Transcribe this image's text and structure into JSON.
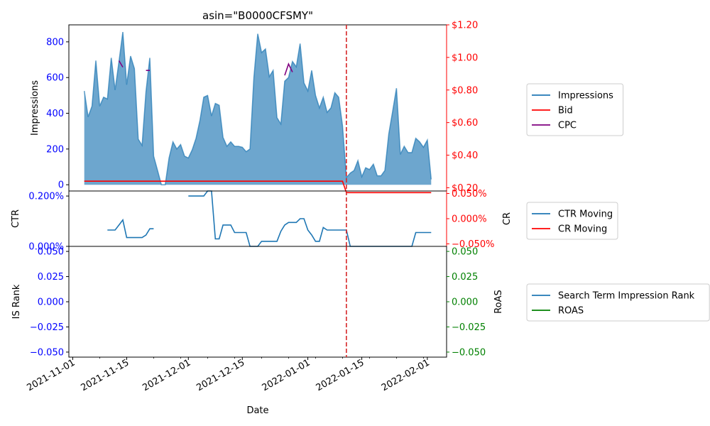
{
  "title": "asin=\"B0000CFSMY\"",
  "xlabel": "Date",
  "x_ticks": [
    {
      "date": "2021-11-01",
      "label": "2021-11-01"
    },
    {
      "date": "2021-11-15",
      "label": "2021-11-15"
    },
    {
      "date": "2021-12-01",
      "label": "2021-12-01"
    },
    {
      "date": "2021-12-15",
      "label": "2021-12-15"
    },
    {
      "date": "2022-01-01",
      "label": "2022-01-01"
    },
    {
      "date": "2022-01-15",
      "label": "2022-01-15"
    },
    {
      "date": "2022-02-01",
      "label": "2022-02-01"
    }
  ],
  "x_range": [
    "2021-10-31",
    "2022-02-06"
  ],
  "vline_date": "2022-01-11",
  "colors": {
    "impressions": "#1f77b4",
    "bid": "#ff0000",
    "cpc": "#800080",
    "ctr": "#1f77b4",
    "cr": "#ff0000",
    "roas": "#008000",
    "left_tick": "#0000ff",
    "vline": "#d62728"
  },
  "chart_data": [
    {
      "type": "area",
      "panel": "top",
      "ylabel": "Impressions",
      "ylim": [
        -35,
        895
      ],
      "yticks": [
        {
          "v": 0,
          "label": "0"
        },
        {
          "v": 200,
          "label": "200"
        },
        {
          "v": 400,
          "label": "400"
        },
        {
          "v": 600,
          "label": "600"
        },
        {
          "v": 800,
          "label": "800"
        }
      ],
      "y2lim": [
        0.18,
        1.2
      ],
      "y2ticks": [
        {
          "v": 0.2,
          "label": "$0.20"
        },
        {
          "v": 0.4,
          "label": "$0.40"
        },
        {
          "v": 0.6,
          "label": "$0.60"
        },
        {
          "v": 0.8,
          "label": "$0.80"
        },
        {
          "v": 1.0,
          "label": "$1.00"
        },
        {
          "v": 1.2,
          "label": "$1.20"
        }
      ],
      "legend": [
        {
          "name": "Impressions",
          "color": "#1f77b4"
        },
        {
          "name": "Bid",
          "color": "#ff0000"
        },
        {
          "name": "CPC",
          "color": "#800080"
        }
      ],
      "series": [
        {
          "name": "Impressions",
          "axis": "left",
          "points": [
            [
              "2021-11-04",
              525
            ],
            [
              "2021-11-05",
              380
            ],
            [
              "2021-11-06",
              440
            ],
            [
              "2021-11-07",
              695
            ],
            [
              "2021-11-08",
              440
            ],
            [
              "2021-11-09",
              490
            ],
            [
              "2021-11-10",
              480
            ],
            [
              "2021-11-11",
              710
            ],
            [
              "2021-11-12",
              530
            ],
            [
              "2021-11-13",
              690
            ],
            [
              "2021-11-14",
              855
            ],
            [
              "2021-11-15",
              560
            ],
            [
              "2021-11-16",
              720
            ],
            [
              "2021-11-17",
              650
            ],
            [
              "2021-11-18",
              255
            ],
            [
              "2021-11-19",
              220
            ],
            [
              "2021-11-20",
              520
            ],
            [
              "2021-11-21",
              710
            ],
            [
              "2021-11-22",
              160
            ],
            [
              "2021-11-23",
              80
            ],
            [
              "2021-11-24",
              0
            ],
            [
              "2021-11-25",
              0
            ],
            [
              "2021-11-26",
              150
            ],
            [
              "2021-11-27",
              240
            ],
            [
              "2021-11-28",
              200
            ],
            [
              "2021-11-29",
              225
            ],
            [
              "2021-11-30",
              160
            ],
            [
              "2021-12-01",
              150
            ],
            [
              "2021-12-02",
              195
            ],
            [
              "2021-12-03",
              260
            ],
            [
              "2021-12-04",
              360
            ],
            [
              "2021-12-05",
              490
            ],
            [
              "2021-12-06",
              500
            ],
            [
              "2021-12-07",
              385
            ],
            [
              "2021-12-08",
              455
            ],
            [
              "2021-12-09",
              445
            ],
            [
              "2021-12-10",
              265
            ],
            [
              "2021-12-11",
              215
            ],
            [
              "2021-12-12",
              240
            ],
            [
              "2021-12-13",
              215
            ],
            [
              "2021-12-14",
              215
            ],
            [
              "2021-12-15",
              210
            ],
            [
              "2021-12-16",
              185
            ],
            [
              "2021-12-17",
              200
            ],
            [
              "2021-12-18",
              600
            ],
            [
              "2021-12-19",
              845
            ],
            [
              "2021-12-20",
              740
            ],
            [
              "2021-12-21",
              760
            ],
            [
              "2021-12-22",
              605
            ],
            [
              "2021-12-23",
              640
            ],
            [
              "2021-12-24",
              375
            ],
            [
              "2021-12-25",
              340
            ],
            [
              "2021-12-26",
              580
            ],
            [
              "2021-12-27",
              600
            ],
            [
              "2021-12-28",
              690
            ],
            [
              "2021-12-29",
              660
            ],
            [
              "2021-12-30",
              790
            ],
            [
              "2021-12-31",
              570
            ],
            [
              "2022-01-01",
              525
            ],
            [
              "2022-01-02",
              640
            ],
            [
              "2022-01-03",
              500
            ],
            [
              "2022-01-04",
              430
            ],
            [
              "2022-01-05",
              490
            ],
            [
              "2022-01-06",
              405
            ],
            [
              "2022-01-07",
              430
            ],
            [
              "2022-01-08",
              515
            ],
            [
              "2022-01-09",
              490
            ],
            [
              "2022-01-10",
              330
            ],
            [
              "2022-01-11",
              40
            ],
            [
              "2022-01-12",
              65
            ],
            [
              "2022-01-13",
              80
            ],
            [
              "2022-01-14",
              135
            ],
            [
              "2022-01-15",
              45
            ],
            [
              "2022-01-16",
              95
            ],
            [
              "2022-01-17",
              85
            ],
            [
              "2022-01-18",
              115
            ],
            [
              "2022-01-19",
              50
            ],
            [
              "2022-01-20",
              50
            ],
            [
              "2022-01-21",
              80
            ],
            [
              "2022-01-22",
              285
            ],
            [
              "2022-01-23",
              410
            ],
            [
              "2022-01-24",
              540
            ],
            [
              "2022-01-25",
              170
            ],
            [
              "2022-01-26",
              215
            ],
            [
              "2022-01-27",
              180
            ],
            [
              "2022-01-28",
              180
            ],
            [
              "2022-01-29",
              260
            ],
            [
              "2022-01-30",
              240
            ],
            [
              "2022-01-31",
              210
            ],
            [
              "2022-02-01",
              250
            ],
            [
              "2022-02-02",
              30
            ]
          ]
        },
        {
          "name": "Bid",
          "axis": "right",
          "points": [
            [
              "2021-11-04",
              0.24
            ],
            [
              "2022-01-10",
              0.24
            ],
            [
              "2022-01-11",
              0.17
            ],
            [
              "2022-02-02",
              0.17
            ]
          ]
        },
        {
          "name": "CPC",
          "axis": "right",
          "segments": [
            [
              [
                "2021-11-13",
                0.98
              ],
              [
                "2021-11-14",
                0.94
              ]
            ],
            [
              [
                "2021-11-20",
                0.92
              ],
              [
                "2021-11-21",
                0.92
              ]
            ],
            [
              [
                "2021-12-26",
                0.89
              ],
              [
                "2021-12-27",
                0.96
              ],
              [
                "2021-12-28",
                0.91
              ]
            ]
          ]
        }
      ]
    },
    {
      "type": "line",
      "panel": "middle",
      "ylabel": "CTR",
      "ylim": [
        0.0,
        0.0022
      ],
      "yticks": [
        {
          "v": 0.0,
          "label": "0.000%"
        },
        {
          "v": 0.002,
          "label": "0.200%"
        }
      ],
      "y2label": "CR",
      "y2lim": [
        -0.055,
        0.055
      ],
      "y2ticks": [
        {
          "v": -0.05,
          "label": "−0.050%"
        },
        {
          "v": 0.0,
          "label": "0.000%"
        },
        {
          "v": 0.05,
          "label": "0.050%"
        }
      ],
      "legend": [
        {
          "name": "CTR Moving",
          "color": "#1f77b4"
        },
        {
          "name": "CR Moving",
          "color": "#ff0000"
        }
      ],
      "series": [
        {
          "name": "CTR Moving",
          "axis": "left",
          "segments": [
            [
              [
                "2021-11-10",
                0.00065
              ],
              [
                "2021-11-11",
                0.00065
              ],
              [
                "2021-11-12",
                0.00065
              ],
              [
                "2021-11-13",
                0.00085
              ],
              [
                "2021-11-14",
                0.00105
              ],
              [
                "2021-11-15",
                0.00035
              ],
              [
                "2021-11-16",
                0.00035
              ],
              [
                "2021-11-17",
                0.00035
              ],
              [
                "2021-11-18",
                0.00035
              ],
              [
                "2021-11-19",
                0.00035
              ],
              [
                "2021-11-20",
                0.00045
              ],
              [
                "2021-11-21",
                0.0007
              ],
              [
                "2021-11-22",
                0.0007
              ]
            ],
            [
              [
                "2021-12-01",
                0.002
              ],
              [
                "2021-12-02",
                0.002
              ],
              [
                "2021-12-03",
                0.002
              ],
              [
                "2021-12-04",
                0.002
              ],
              [
                "2021-12-05",
                0.002
              ],
              [
                "2021-12-06",
                0.0022
              ],
              [
                "2021-12-07",
                0.0022
              ],
              [
                "2021-12-08",
                0.0003
              ],
              [
                "2021-12-09",
                0.0003
              ],
              [
                "2021-12-10",
                0.00085
              ],
              [
                "2021-12-11",
                0.00085
              ],
              [
                "2021-12-12",
                0.00085
              ],
              [
                "2021-12-13",
                0.00055
              ],
              [
                "2021-12-14",
                0.00055
              ],
              [
                "2021-12-15",
                0.00055
              ],
              [
                "2021-12-16",
                0.00055
              ],
              [
                "2021-12-17",
                0.0
              ],
              [
                "2021-12-18",
                0.0
              ],
              [
                "2021-12-19",
                0.0
              ],
              [
                "2021-12-20",
                0.0002
              ],
              [
                "2021-12-21",
                0.0002
              ],
              [
                "2021-12-22",
                0.0002
              ],
              [
                "2021-12-23",
                0.0002
              ],
              [
                "2021-12-24",
                0.0002
              ],
              [
                "2021-12-25",
                0.0006
              ],
              [
                "2021-12-26",
                0.00085
              ],
              [
                "2021-12-27",
                0.00095
              ],
              [
                "2021-12-28",
                0.00095
              ],
              [
                "2021-12-29",
                0.00095
              ],
              [
                "2021-12-30",
                0.0011
              ],
              [
                "2021-12-31",
                0.0011
              ],
              [
                "2022-01-01",
                0.00065
              ],
              [
                "2022-01-02",
                0.00045
              ],
              [
                "2022-01-03",
                0.0002
              ],
              [
                "2022-01-04",
                0.0002
              ],
              [
                "2022-01-05",
                0.00075
              ],
              [
                "2022-01-06",
                0.00065
              ],
              [
                "2022-01-07",
                0.00065
              ],
              [
                "2022-01-08",
                0.00065
              ],
              [
                "2022-01-09",
                0.00065
              ],
              [
                "2022-01-10",
                0.00065
              ],
              [
                "2022-01-11",
                0.00065
              ],
              [
                "2022-01-12",
                0.0
              ],
              [
                "2022-01-13",
                0.0
              ],
              [
                "2022-01-14",
                0.0
              ],
              [
                "2022-01-15",
                0.0
              ],
              [
                "2022-01-16",
                0.0
              ],
              [
                "2022-01-17",
                0.0
              ],
              [
                "2022-01-18",
                0.0
              ],
              [
                "2022-01-19",
                0.0
              ],
              [
                "2022-01-20",
                0.0
              ],
              [
                "2022-01-21",
                0.0
              ],
              [
                "2022-01-22",
                0.0
              ],
              [
                "2022-01-23",
                0.0
              ],
              [
                "2022-01-24",
                0.0
              ],
              [
                "2022-01-25",
                0.0
              ],
              [
                "2022-01-26",
                0.0
              ],
              [
                "2022-01-27",
                0.0
              ],
              [
                "2022-01-28",
                0.0
              ],
              [
                "2022-01-29",
                0.00055
              ],
              [
                "2022-01-30",
                0.00055
              ],
              [
                "2022-01-31",
                0.00055
              ],
              [
                "2022-02-01",
                0.00055
              ],
              [
                "2022-02-02",
                0.00055
              ]
            ]
          ]
        }
      ]
    },
    {
      "type": "line",
      "panel": "bottom",
      "ylabel": "IS Rank",
      "ylim": [
        -0.055,
        0.055
      ],
      "yticks": [
        {
          "v": -0.05,
          "label": "−0.050"
        },
        {
          "v": -0.025,
          "label": "−0.025"
        },
        {
          "v": 0.0,
          "label": "0.000"
        },
        {
          "v": 0.025,
          "label": "0.025"
        },
        {
          "v": 0.05,
          "label": "0.050"
        }
      ],
      "y2label": "RoAS",
      "y2lim": [
        -0.055,
        0.055
      ],
      "y2ticks": [
        {
          "v": -0.05,
          "label": "−0.050"
        },
        {
          "v": -0.025,
          "label": "−0.025"
        },
        {
          "v": 0.0,
          "label": "0.000"
        },
        {
          "v": 0.025,
          "label": "0.025"
        },
        {
          "v": 0.05,
          "label": "0.050"
        }
      ],
      "legend": [
        {
          "name": "Search Term Impression Rank",
          "color": "#1f77b4"
        },
        {
          "name": "ROAS",
          "color": "#008000"
        }
      ],
      "series": []
    }
  ]
}
